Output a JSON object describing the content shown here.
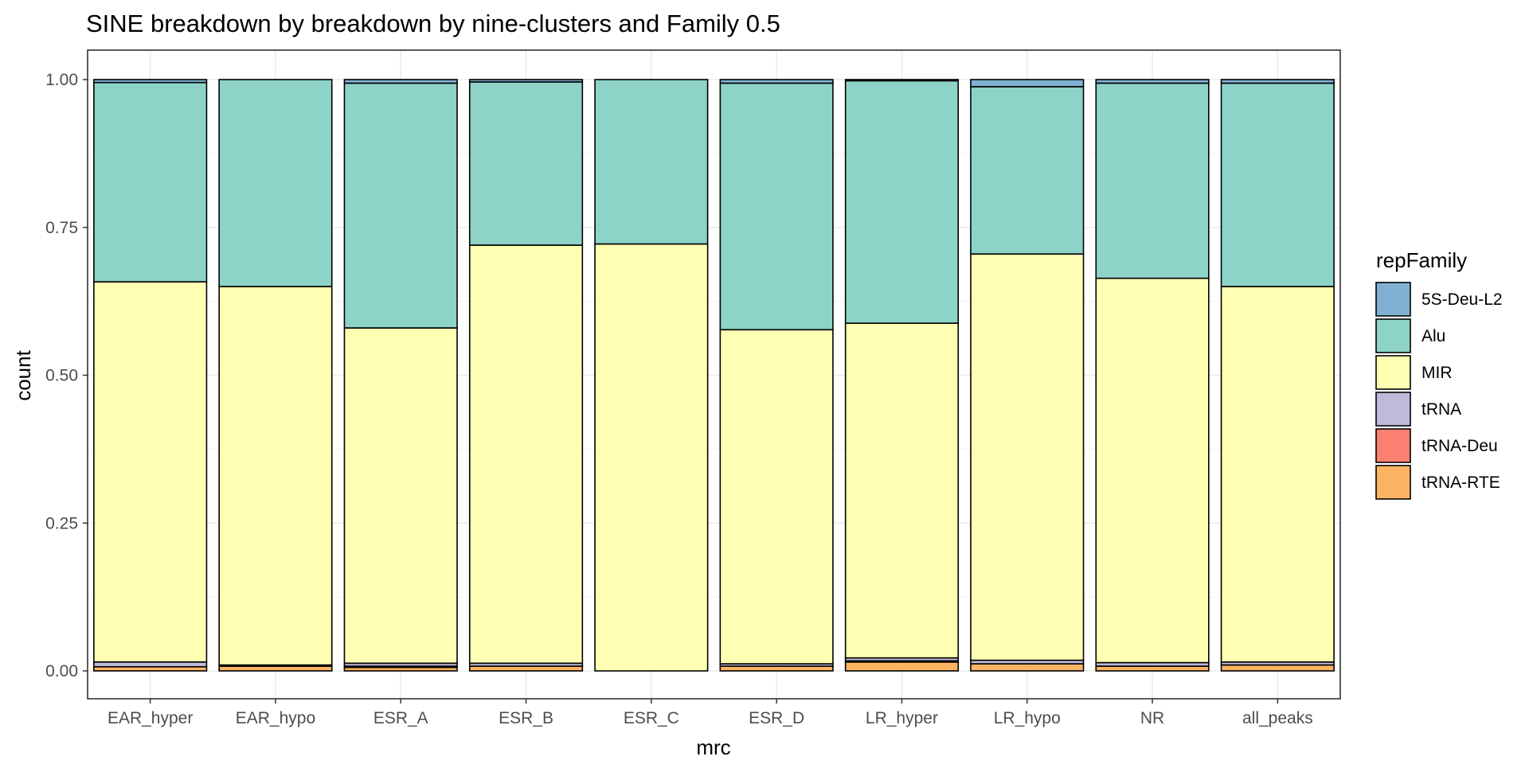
{
  "chart_data": {
    "type": "bar",
    "stacked": true,
    "title": "SINE breakdown by breakdown by nine-clusters and Family 0.5",
    "xlabel": "mrc",
    "ylabel": "count",
    "ylim": [
      0,
      1
    ],
    "yticks": [
      "0.00",
      "0.25",
      "0.50",
      "0.75",
      "1.00"
    ],
    "ytick_values": [
      0,
      0.25,
      0.5,
      0.75,
      1.0
    ],
    "grid": true,
    "legend_position": "right",
    "legend_title": "repFamily",
    "categories": [
      "EAR_hyper",
      "EAR_hypo",
      "ESR_A",
      "ESR_B",
      "ESR_C",
      "ESR_D",
      "LR_hyper",
      "LR_hypo",
      "NR",
      "all_peaks"
    ],
    "stack_order_top_to_bottom": [
      "5S-Deu-L2",
      "Alu",
      "MIR",
      "tRNA",
      "tRNA-Deu",
      "tRNA-RTE"
    ],
    "series": [
      {
        "name": "5S-Deu-L2",
        "color": "#80B1D3",
        "values": [
          0.005,
          0.0,
          0.006,
          0.004,
          0.0,
          0.006,
          0.002,
          0.012,
          0.006,
          0.006
        ]
      },
      {
        "name": "Alu",
        "color": "#8DD3C7",
        "values": [
          0.337,
          0.35,
          0.414,
          0.276,
          0.278,
          0.417,
          0.41,
          0.283,
          0.33,
          0.344
        ]
      },
      {
        "name": "MIR",
        "color": "#FFFFB3",
        "values": [
          0.643,
          0.64,
          0.567,
          0.707,
          0.722,
          0.565,
          0.566,
          0.687,
          0.65,
          0.635
        ]
      },
      {
        "name": "tRNA",
        "color": "#BEBADA",
        "values": [
          0.008,
          0.002,
          0.005,
          0.005,
          0.0,
          0.004,
          0.005,
          0.006,
          0.006,
          0.005
        ]
      },
      {
        "name": "tRNA-Deu",
        "color": "#FB8072",
        "values": [
          0.0,
          0.0,
          0.002,
          0.0,
          0.0,
          0.0,
          0.002,
          0.0,
          0.0,
          0.0
        ]
      },
      {
        "name": "tRNA-RTE",
        "color": "#FDB462",
        "values": [
          0.007,
          0.008,
          0.006,
          0.008,
          0.0,
          0.008,
          0.015,
          0.012,
          0.008,
          0.01
        ]
      }
    ]
  }
}
